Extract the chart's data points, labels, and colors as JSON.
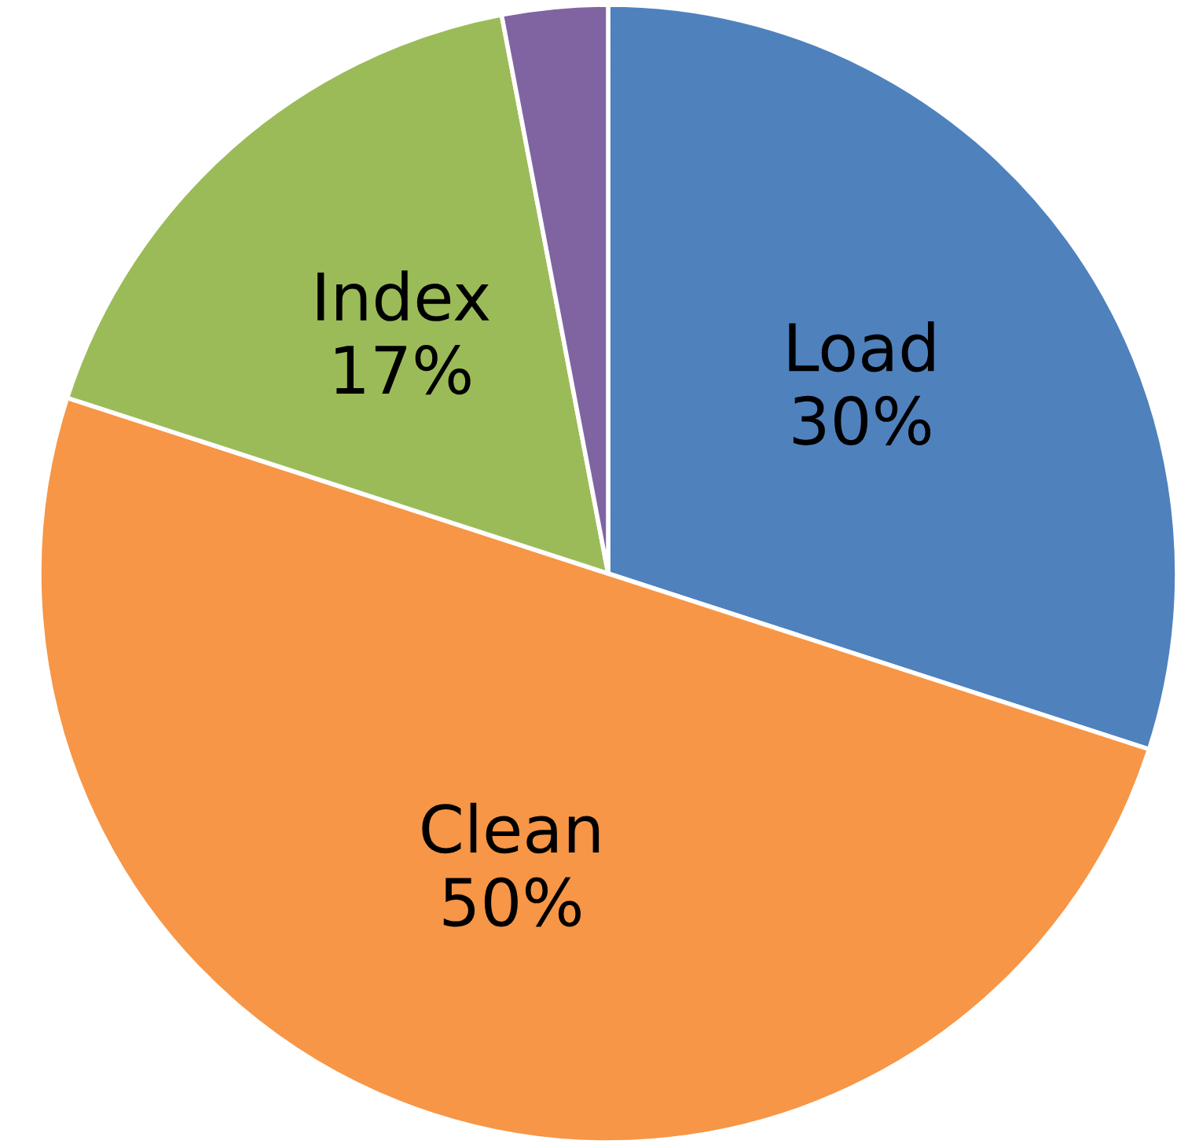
{
  "chart_data": {
    "type": "pie",
    "categories": [
      "Load",
      "Clean",
      "Index",
      null
    ],
    "values": [
      30,
      50,
      17,
      3
    ],
    "value_labels": [
      "30%",
      "50%",
      "17%",
      null
    ],
    "colors": [
      "#4f81bd",
      "#f79646",
      "#9bbb59",
      "#8064a2"
    ],
    "legend": false
  }
}
